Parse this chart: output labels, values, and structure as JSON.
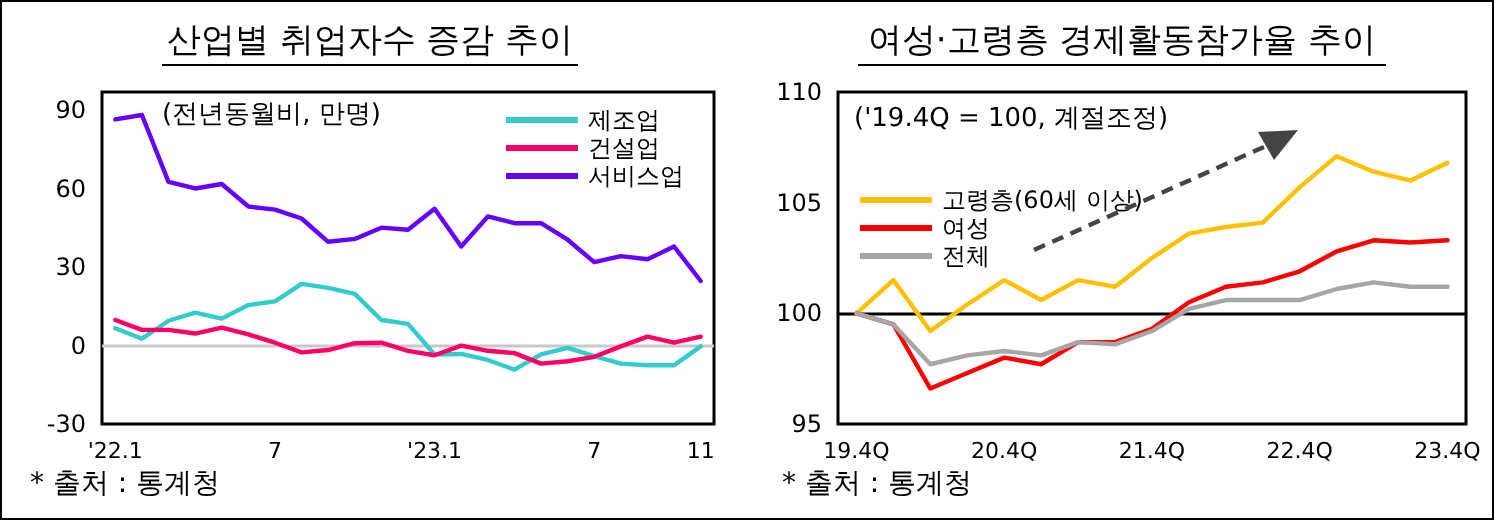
{
  "chart_data": [
    {
      "type": "line",
      "title": "산업별 취업자수 증감 추이",
      "categories": [
        "'22.1",
        null,
        null,
        null,
        null,
        null,
        "7",
        null,
        null,
        null,
        null,
        null,
        "'23.1",
        null,
        null,
        null,
        null,
        null,
        "7",
        null,
        null,
        null,
        "11"
      ],
      "series": [
        {
          "name": "제조업",
          "color": "#33cccc",
          "values": [
            6.6,
            2.6,
            9.5,
            12.6,
            10.3,
            15.5,
            16.9,
            23.6,
            22.1,
            19.8,
            9.8,
            8.3,
            -3.4,
            -3.2,
            -5.5,
            -9.2,
            -3.4,
            -0.9,
            -4,
            -6.9,
            -7.5,
            -7.5,
            -0.3
          ]
        },
        {
          "name": "건설업",
          "color": "#ff0066",
          "values": [
            9.8,
            6,
            6,
            4.6,
            6.9,
            4.3,
            1.1,
            -2.6,
            -1.7,
            0.9,
            1.1,
            -2,
            -3.7,
            0,
            -2,
            -2.9,
            -6.9,
            -6,
            -4.3,
            -0.3,
            3.4,
            1.1,
            3.4
          ]
        },
        {
          "name": "서비스업",
          "color": "#6600ff",
          "values": [
            86.5,
            88.2,
            62.6,
            60.1,
            61.8,
            53.2,
            52,
            48.6,
            39.7,
            40.8,
            45.1,
            44.3,
            52.3,
            37.9,
            49.4,
            46.8,
            46.8,
            40.5,
            31.9,
            34.2,
            33,
            37.9,
            24.7
          ]
        }
      ],
      "ylim": [
        -30,
        97
      ],
      "yticks": [
        -30,
        0,
        30,
        60,
        90
      ],
      "grid": false,
      "legend": "top right",
      "marker": "none",
      "line_style": "solid",
      "ref_lines": [
        {
          "axis": "y",
          "value": 0,
          "label": null,
          "color": "#c8c8c8"
        }
      ],
      "annotations": [
        "(전년동월비, 만명)",
        "* 출처 : 통계청"
      ]
    },
    {
      "type": "line",
      "title": "여성·고령층 경제활동참가율 추이",
      "categories": [
        "19.4Q",
        null,
        null,
        null,
        "20.4Q",
        null,
        null,
        null,
        "21.4Q",
        null,
        null,
        null,
        "22.4Q",
        null,
        null,
        null,
        "23.4Q"
      ],
      "series": [
        {
          "name": "고령층(60세 이상)",
          "color": "#ffc000",
          "values": [
            100,
            101.5,
            99.2,
            100.4,
            101.5,
            100.6,
            101.5,
            101.2,
            102.5,
            103.6,
            103.9,
            104.1,
            105.7,
            107.1,
            106.4,
            106,
            106.8
          ]
        },
        {
          "name": "여성",
          "color": "#ff0000",
          "values": [
            100,
            99.5,
            96.6,
            97.3,
            98,
            97.7,
            98.7,
            98.7,
            99.3,
            100.5,
            101.2,
            101.4,
            101.9,
            102.8,
            103.3,
            103.2,
            103.3
          ]
        },
        {
          "name": "전체",
          "color": "#a6a6a6",
          "values": [
            100,
            99.5,
            97.7,
            98.1,
            98.3,
            98.1,
            98.7,
            98.6,
            99.2,
            100.2,
            100.6,
            100.6,
            100.6,
            101.1,
            101.4,
            101.2,
            101.2
          ]
        }
      ],
      "ylim": [
        95,
        110
      ],
      "yticks": [
        95,
        100,
        105,
        110
      ],
      "grid": false,
      "legend": "top left",
      "marker": "none",
      "line_style": "solid",
      "ref_lines": [
        {
          "axis": "y",
          "value": 100,
          "label": null,
          "color": "#000000"
        }
      ],
      "annotations": [
        "('19.4Q = 100, 계절조정)",
        "* 출처 : 통계청"
      ]
    }
  ]
}
